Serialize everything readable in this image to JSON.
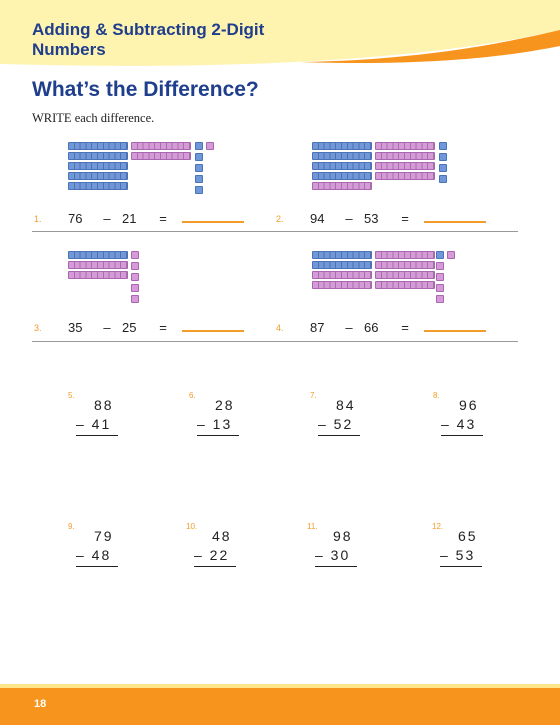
{
  "header": {
    "title": "Adding & Subtracting 2-Digit Numbers"
  },
  "section_title": "What’s the Difference?",
  "instructions": "WRITE each difference.",
  "problems_with_blocks": [
    {
      "num": "1.",
      "a": "76",
      "op": "–",
      "b": "21",
      "eq": "="
    },
    {
      "num": "2.",
      "a": "94",
      "op": "–",
      "b": "53",
      "eq": "="
    },
    {
      "num": "3.",
      "a": "35",
      "op": "–",
      "b": "25",
      "eq": "="
    },
    {
      "num": "4.",
      "a": "87",
      "op": "–",
      "b": "66",
      "eq": "="
    }
  ],
  "vertical_problems": [
    {
      "num": "5.",
      "top": "88",
      "bottom": "– 41"
    },
    {
      "num": "6.",
      "top": "28",
      "bottom": "– 13"
    },
    {
      "num": "7.",
      "top": "84",
      "bottom": "– 52"
    },
    {
      "num": "8.",
      "top": "96",
      "bottom": "– 43"
    },
    {
      "num": "9.",
      "top": "79",
      "bottom": "– 48"
    },
    {
      "num": "10.",
      "top": "48",
      "bottom": "– 22"
    },
    {
      "num": "11.",
      "top": "98",
      "bottom": "– 30"
    },
    {
      "num": "12.",
      "top": "65",
      "bottom": "– 53"
    }
  ],
  "footer": {
    "page_number": "18"
  },
  "colors": {
    "accent_orange": "#f7941d",
    "header_yellow": "#fde68a",
    "title_blue": "#1f3e8c",
    "block_blue": "#6f97d9",
    "block_pink": "#d79ad8"
  }
}
